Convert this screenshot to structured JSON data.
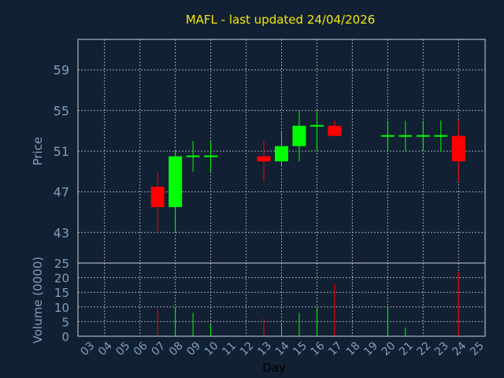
{
  "chart_data": {
    "type": "candlestick",
    "title": "MAFL - last updated 24/04/2026",
    "xlabel": "Day",
    "price_panel": {
      "ylabel": "Price",
      "ylim": [
        40,
        62
      ],
      "yticks": [
        43,
        47,
        51,
        55,
        59
      ]
    },
    "volume_panel": {
      "ylabel": "Volume (0000)",
      "ylim": [
        0,
        25
      ],
      "yticks": [
        0,
        5,
        10,
        15,
        20,
        25
      ]
    },
    "x_tick_labels": [
      "03",
      "04",
      "05",
      "06",
      "07",
      "08",
      "09",
      "10",
      "11",
      "12",
      "13",
      "14",
      "15",
      "16",
      "17",
      "18",
      "19",
      "20",
      "21",
      "22",
      "23",
      "24",
      "25"
    ],
    "candles": [
      {
        "day": "07",
        "open": 47.5,
        "high": 49.0,
        "low": 43.0,
        "close": 45.5,
        "volume": 9
      },
      {
        "day": "08",
        "open": 45.5,
        "high": 51.0,
        "low": 43.0,
        "close": 50.5,
        "volume": 10
      },
      {
        "day": "09",
        "open": 50.5,
        "high": 52.0,
        "low": 49.0,
        "close": 50.5,
        "volume": 8
      },
      {
        "day": "10",
        "open": 50.5,
        "high": 52.0,
        "low": 49.0,
        "close": 50.5,
        "volume": 4
      },
      {
        "day": "13",
        "open": 50.5,
        "high": 52.0,
        "low": 48.0,
        "close": 50.0,
        "volume": 6
      },
      {
        "day": "14",
        "open": 50.0,
        "high": 53.0,
        "low": 49.5,
        "close": 51.5,
        "volume": 4
      },
      {
        "day": "15",
        "open": 51.5,
        "high": 55.0,
        "low": 50.0,
        "close": 53.5,
        "volume": 8
      },
      {
        "day": "16",
        "open": 53.5,
        "high": 55.0,
        "low": 51.0,
        "close": 53.5,
        "volume": 10
      },
      {
        "day": "17",
        "open": 53.5,
        "high": 54.0,
        "low": 52.5,
        "close": 52.5,
        "volume": 18
      },
      {
        "day": "20",
        "open": 52.5,
        "high": 54.0,
        "low": 51.0,
        "close": 52.5,
        "volume": 10
      },
      {
        "day": "21",
        "open": 52.5,
        "high": 54.0,
        "low": 51.0,
        "close": 52.5,
        "volume": 3
      },
      {
        "day": "22",
        "open": 52.5,
        "high": 54.0,
        "low": 51.0,
        "close": 52.5,
        "volume": 0
      },
      {
        "day": "23",
        "open": 52.5,
        "high": 54.0,
        "low": 51.0,
        "close": 52.5,
        "volume": 0
      },
      {
        "day": "24",
        "open": 52.5,
        "high": 54.0,
        "low": 48.0,
        "close": 50.0,
        "volume": 22
      }
    ],
    "grid": true,
    "colors": {
      "background": "#122033",
      "title": "#f2e60a",
      "axis_text": "#7f9fbf",
      "up": "#00ff00",
      "down": "#ff0000",
      "flat": "#00ff00",
      "grid": "#9aa5b5"
    }
  }
}
